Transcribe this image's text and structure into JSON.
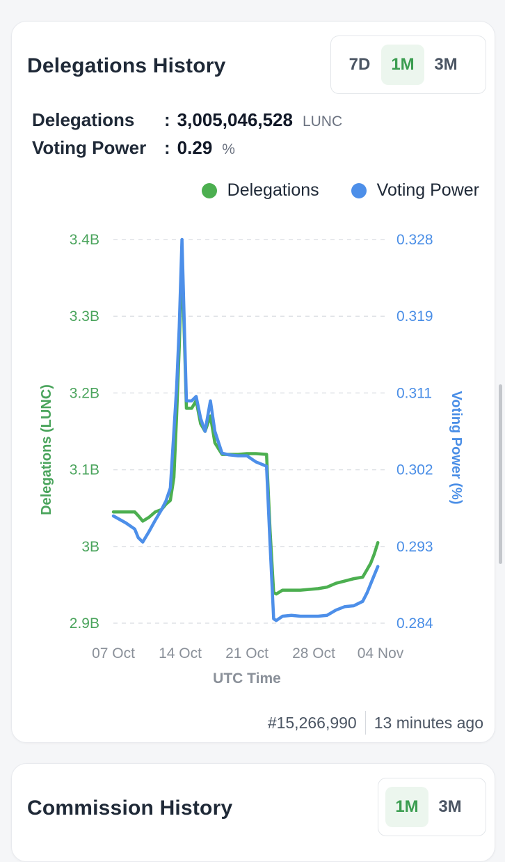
{
  "delegations_card": {
    "title": "Delegations History",
    "periods": [
      "7D",
      "1M",
      "3M"
    ],
    "active_period": "1M",
    "stats": [
      {
        "label": "Delegations",
        "value": "3,005,046,528",
        "unit": "LUNC"
      },
      {
        "label": "Voting Power",
        "value": "0.29",
        "unit": "%"
      }
    ],
    "footer": {
      "block": "#15,266,990",
      "time": "13 minutes ago"
    }
  },
  "chart_data": {
    "type": "line",
    "xlabel": "UTC Time",
    "ylabel": "Delegations (LUNC)",
    "y2label": "Voting Power (%)",
    "x_ticks": [
      "07 Oct",
      "14 Oct",
      "21 Oct",
      "28 Oct",
      "04 Nov"
    ],
    "x_range": [
      0,
      30
    ],
    "ylim": [
      2.9,
      3.4
    ],
    "y_ticks": [
      "3.4B",
      "3.3B",
      "3.2B",
      "3.1B",
      "3B",
      "2.9B"
    ],
    "y2lim": [
      0.284,
      0.328
    ],
    "y2_ticks": [
      "0.328",
      "0.319",
      "0.311",
      "0.302",
      "0.293",
      "0.284"
    ],
    "legend_position": "top-right",
    "grid": true,
    "series": [
      {
        "name": "Delegations",
        "color": "#4caf50",
        "x": [
          0,
          1.4,
          2.4,
          2.8,
          3.3,
          4,
          4.7,
          5.4,
          5.9,
          6.4,
          6.8,
          7.1,
          7.4,
          7.7,
          8.2,
          8.8,
          9.3,
          9.8,
          10.3,
          10.9,
          11.4,
          12.2,
          13,
          14,
          15,
          16,
          17.2,
          17.6,
          18,
          18.3,
          19,
          20,
          21,
          22,
          23,
          24,
          25,
          26,
          27,
          28,
          28.5,
          28.9,
          29.3,
          29.7
        ],
        "y": [
          3.045,
          3.045,
          3.045,
          3.04,
          3.033,
          3.038,
          3.045,
          3.048,
          3.055,
          3.06,
          3.09,
          3.17,
          3.26,
          3.38,
          3.18,
          3.18,
          3.19,
          3.16,
          3.15,
          3.17,
          3.135,
          3.12,
          3.12,
          3.12,
          3.121,
          3.121,
          3.12,
          3.02,
          2.94,
          2.938,
          2.943,
          2.943,
          2.943,
          2.944,
          2.945,
          2.947,
          2.952,
          2.955,
          2.958,
          2.96,
          2.97,
          2.978,
          2.99,
          3.005
        ]
      },
      {
        "name": "Voting Power",
        "color": "#4d8fe9",
        "x": [
          0,
          1.4,
          2.4,
          2.8,
          3.3,
          4,
          4.7,
          5.4,
          5.9,
          6.4,
          6.8,
          7.1,
          7.4,
          7.7,
          8.2,
          8.8,
          9.3,
          9.8,
          10.3,
          10.9,
          11.4,
          12.2,
          13,
          14,
          15,
          16,
          17.2,
          17.6,
          18,
          18.3,
          19,
          20,
          21,
          22,
          23,
          24,
          25,
          26,
          27,
          28,
          28.5,
          28.9,
          29.3,
          29.7
        ],
        "y": [
          0.2963,
          0.2955,
          0.2948,
          0.2938,
          0.2933,
          0.2945,
          0.2958,
          0.297,
          0.298,
          0.2995,
          0.306,
          0.311,
          0.318,
          0.328,
          0.3095,
          0.3095,
          0.31,
          0.3075,
          0.306,
          0.3095,
          0.306,
          0.3035,
          0.3033,
          0.3032,
          0.3032,
          0.3025,
          0.302,
          0.293,
          0.2845,
          0.2843,
          0.2848,
          0.2849,
          0.2848,
          0.2848,
          0.2848,
          0.2849,
          0.2855,
          0.2859,
          0.286,
          0.2865,
          0.2875,
          0.2885,
          0.2895,
          0.2905
        ]
      }
    ]
  },
  "commission_card": {
    "title": "Commission History",
    "periods": [
      "1M",
      "3M"
    ],
    "active_period": "1M"
  }
}
